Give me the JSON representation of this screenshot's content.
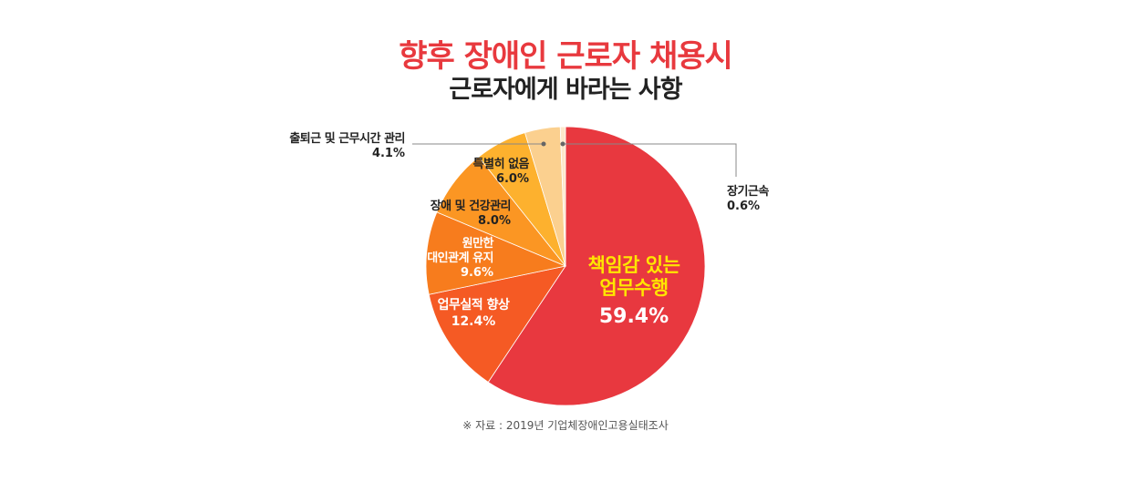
{
  "title": {
    "line1": "향후 장애인 근로자 채용시",
    "line2": "근로자에게 바라는 사항"
  },
  "source": "※ 자료 : 2019년 기업체장애인고용실태조사",
  "chart_data": {
    "type": "pie",
    "title": "향후 장애인 근로자 채용시 근로자에게 바라는 사항",
    "unit": "%",
    "slices": [
      {
        "label": [
          "책임감 있는",
          "업무수행"
        ],
        "value": 59.4,
        "value_label": "59.4%",
        "color": "#e8383f"
      },
      {
        "label": [
          "업무실적 향상"
        ],
        "value": 12.4,
        "value_label": "12.4%",
        "color": "#f55a24"
      },
      {
        "label": [
          "원만한",
          "대인관계 유지"
        ],
        "value": 9.6,
        "value_label": "9.6%",
        "color": "#f77c1d"
      },
      {
        "label": [
          "장애 및 건강관리"
        ],
        "value": 8.0,
        "value_label": "8.0%",
        "color": "#fb9623"
      },
      {
        "label": [
          "특별히 없음"
        ],
        "value": 6.0,
        "value_label": "6.0%",
        "color": "#fdb12e"
      },
      {
        "label": [
          "출퇴근 및 근무시간 관리"
        ],
        "value": 4.1,
        "value_label": "4.1%",
        "color": "#fbd08f"
      },
      {
        "label": [
          "장기근속"
        ],
        "value": 0.6,
        "value_label": "0.6%",
        "color": "#fde8cb"
      }
    ]
  }
}
